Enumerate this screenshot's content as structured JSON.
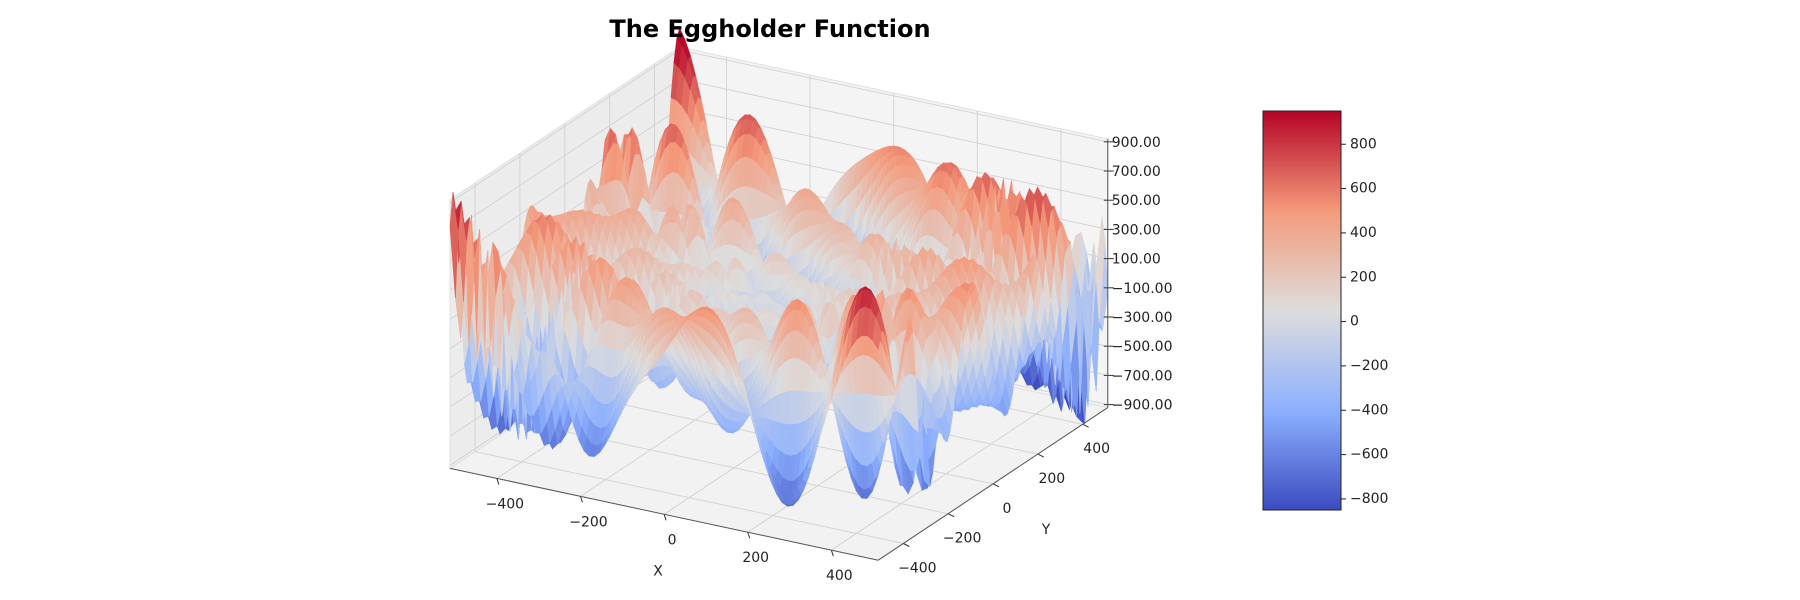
{
  "chart_data": {
    "type": "surface3d",
    "title": "The Eggholder Function",
    "xlabel": "X",
    "ylabel": "Y",
    "xlim": [
      -512,
      512
    ],
    "ylim": [
      -512,
      512
    ],
    "zlim": [
      -920,
      920
    ],
    "xticks": [
      {
        "value": -400,
        "label": "−400"
      },
      {
        "value": -200,
        "label": "−200"
      },
      0,
      200,
      400
    ],
    "yticks": [
      {
        "value": -400,
        "label": "−400"
      },
      {
        "value": -200,
        "label": "−200"
      },
      0,
      200,
      400
    ],
    "zticks": [
      {
        "value": -900,
        "label": "−900.00"
      },
      {
        "value": -700,
        "label": "−700.00"
      },
      {
        "value": -500,
        "label": "−500.00"
      },
      {
        "value": -300,
        "label": "−300.00"
      },
      {
        "value": -100,
        "label": "−100.00"
      },
      {
        "value": 100,
        "label": "100.00"
      },
      {
        "value": 300,
        "label": "300.00"
      },
      {
        "value": 500,
        "label": "500.00"
      },
      {
        "value": 700,
        "label": "700.00"
      },
      {
        "value": 900,
        "label": "900.00"
      }
    ],
    "colormap": "coolwarm",
    "grid": true,
    "colorbar": {
      "clim": [
        -850,
        950
      ],
      "ticks": [
        {
          "value": -800,
          "label": "−800"
        },
        {
          "value": -600,
          "label": "−600"
        },
        {
          "value": -400,
          "label": "−400"
        },
        {
          "value": -200,
          "label": "−200"
        },
        0,
        200,
        400,
        600,
        800
      ]
    }
  }
}
